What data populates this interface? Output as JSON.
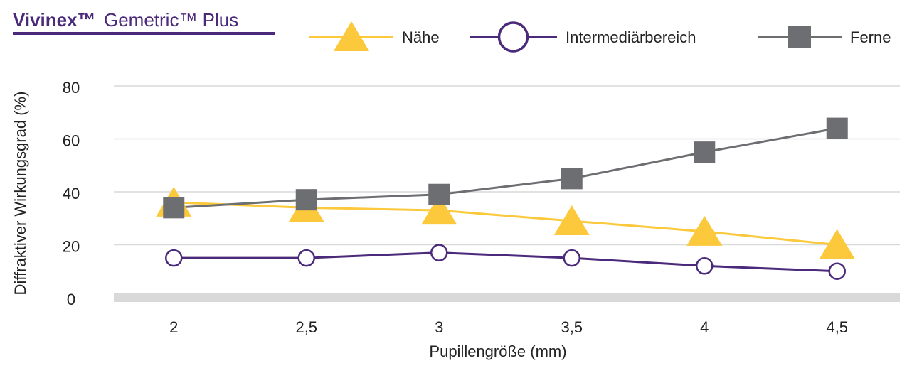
{
  "chart_data": {
    "type": "line",
    "title": [
      "Vivinex™",
      "Gemetric™ Plus"
    ],
    "xlabel": "Pupillengröße (mm)",
    "ylabel": "Diffraktiver Wirkungsgrad (%)",
    "categories": [
      "2",
      "2,5",
      "3",
      "3,5",
      "4",
      "4,5"
    ],
    "series": [
      {
        "name": "Nähe",
        "color": "#fcc93c",
        "marker": "triangle",
        "values": [
          36,
          34,
          33,
          29,
          25,
          20
        ]
      },
      {
        "name": "Intermediärbereich",
        "color": "#4b2a7b",
        "marker": "circle",
        "values": [
          15,
          15,
          17,
          15,
          12,
          10
        ]
      },
      {
        "name": "Ferne",
        "color": "#6d6e71",
        "marker": "square",
        "values": [
          34,
          37,
          39,
          45,
          55,
          64
        ]
      }
    ],
    "ylim": [
      0,
      80
    ],
    "yticks": [
      0,
      20,
      40,
      60,
      80
    ],
    "grid": true,
    "legend": "top"
  }
}
